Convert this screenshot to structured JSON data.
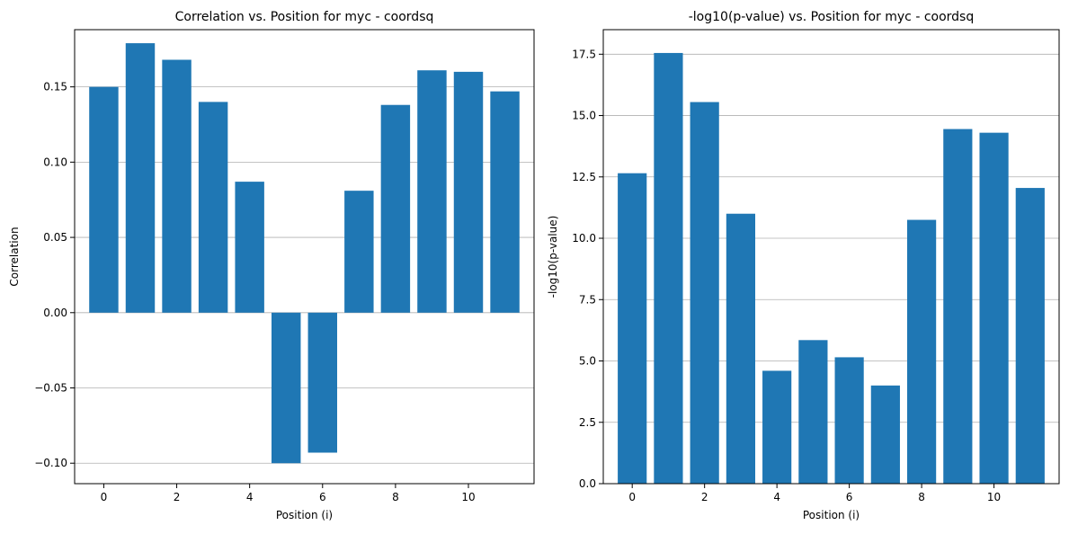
{
  "colors": {
    "bar": "#1f77b4",
    "grid": "#b0b0b0",
    "axis": "#000000"
  },
  "chart_data": [
    {
      "type": "bar",
      "title": "Correlation vs. Position for myc - coordsq",
      "xlabel": "Position (i)",
      "ylabel": "Correlation",
      "x": [
        0,
        1,
        2,
        3,
        4,
        5,
        6,
        7,
        8,
        9,
        10,
        11
      ],
      "values": [
        0.15,
        0.179,
        0.168,
        0.14,
        0.087,
        -0.1,
        -0.093,
        0.081,
        0.138,
        0.161,
        0.16,
        0.147
      ],
      "xlim": [
        -0.8,
        11.8
      ],
      "ylim": [
        -0.1136,
        0.188
      ],
      "xticks": [
        0,
        2,
        4,
        6,
        8,
        10
      ],
      "xtick_labels": [
        "0",
        "2",
        "4",
        "6",
        "8",
        "10"
      ],
      "yticks": [
        -0.1,
        -0.05,
        0.0,
        0.05,
        0.1,
        0.15
      ],
      "ytick_labels": [
        "−0.10",
        "−0.05",
        "0.00",
        "0.05",
        "0.10",
        "0.15"
      ],
      "grid": "y",
      "legend": "none"
    },
    {
      "type": "bar",
      "title": "-log10(p-value) vs. Position for myc - coordsq",
      "xlabel": "Position (i)",
      "ylabel": "-log10(p-value)",
      "x": [
        0,
        1,
        2,
        3,
        4,
        5,
        6,
        7,
        8,
        9,
        10,
        11
      ],
      "values": [
        12.65,
        17.55,
        15.55,
        11.0,
        4.6,
        5.85,
        5.15,
        4.0,
        10.75,
        14.45,
        14.3,
        12.05
      ],
      "xlim": [
        -0.8,
        11.8
      ],
      "ylim": [
        0,
        18.5
      ],
      "xticks": [
        0,
        2,
        4,
        6,
        8,
        10
      ],
      "xtick_labels": [
        "0",
        "2",
        "4",
        "6",
        "8",
        "10"
      ],
      "yticks": [
        0,
        2.5,
        5.0,
        7.5,
        10.0,
        12.5,
        15.0,
        17.5
      ],
      "ytick_labels": [
        "0.0",
        "2.5",
        "5.0",
        "7.5",
        "10.0",
        "12.5",
        "15.0",
        "17.5"
      ],
      "grid": "y",
      "legend": "none"
    }
  ]
}
